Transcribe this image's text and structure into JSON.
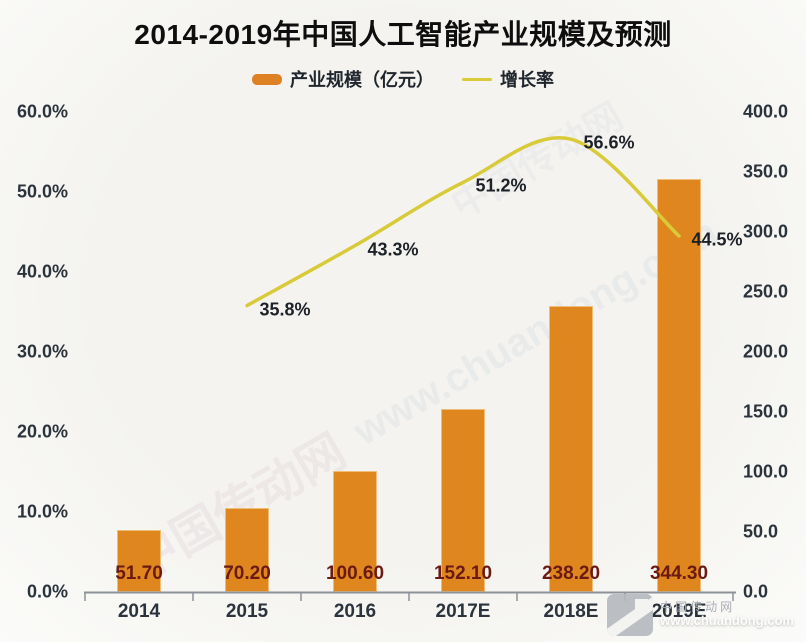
{
  "title": "2014-2019年中国人工智能产业规模及预测",
  "legend": [
    {
      "label": "产业规模（亿元）",
      "marker": "bar",
      "color": "#dd8124"
    },
    {
      "label": "增长率",
      "marker": "line",
      "color": "#d9ca3a"
    }
  ],
  "chart_data": {
    "type": "bar+line combo",
    "categories": [
      "2014",
      "2015",
      "2016",
      "2017E",
      "2018E",
      "2019E"
    ],
    "series": [
      {
        "name": "产业规模（亿元）",
        "type": "bar",
        "axis": "right",
        "color": "#e0861f",
        "values": [
          51.7,
          70.2,
          100.6,
          152.1,
          238.2,
          344.3
        ],
        "labels": [
          "51.70",
          "70.20",
          "100.60",
          "152.10",
          "238.20",
          "344.30"
        ],
        "label_color": "#6b1a12"
      },
      {
        "name": "增长率",
        "type": "line",
        "axis": "left",
        "color": "#d9ca3a",
        "values": [
          null,
          35.8,
          43.3,
          51.2,
          56.6,
          44.5
        ],
        "labels": [
          null,
          "35.8%",
          "43.3%",
          "51.2%",
          "56.6%",
          "44.5%"
        ],
        "label_color": "#1d2228"
      }
    ],
    "left_axis": {
      "unit": "%",
      "min": 0,
      "max": 60,
      "ticks": [
        "60.0%",
        "50.0%",
        "40.0%",
        "30.0%",
        "20.0%",
        "10.0%",
        "0.0%"
      ]
    },
    "right_axis": {
      "unit": "亿元",
      "min": 0,
      "max": 400,
      "ticks": [
        "400.0",
        "350.0",
        "300.0",
        "250.0",
        "200.0",
        "150.0",
        "100.0",
        "50.0",
        "0.0"
      ]
    },
    "grid": false,
    "legend_position": "top",
    "axis_line_color": "#8d9298"
  },
  "watermark": {
    "site_name": "中国传动网",
    "site_url": "www.chuandong.com"
  }
}
